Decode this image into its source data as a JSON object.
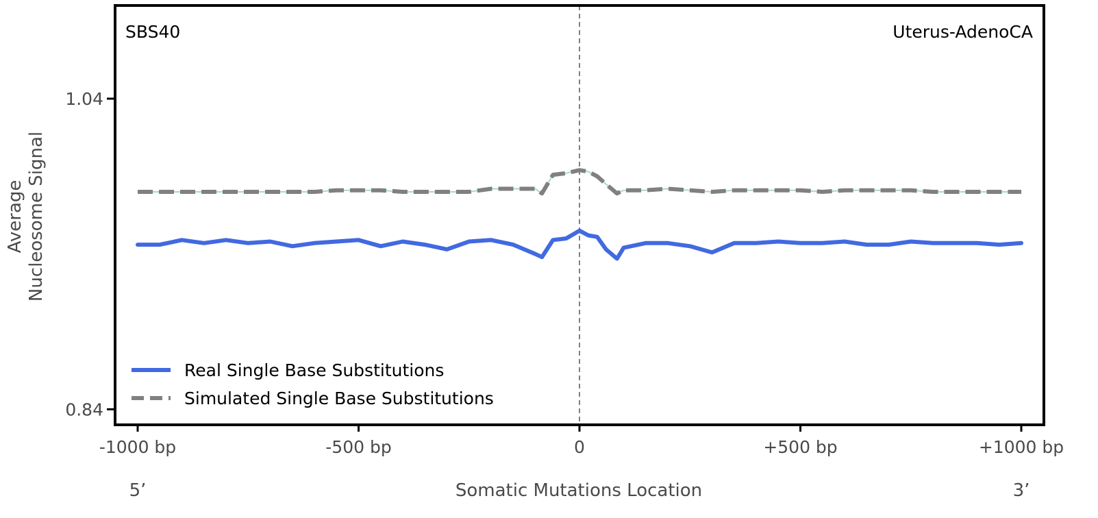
{
  "chart_data": {
    "type": "line",
    "signature_label": "SBS40",
    "cancer_type_label": "Uterus-AdenoCA",
    "ylabel_lines": [
      "Average",
      "Nucleosome Signal"
    ],
    "xlabel": "Somatic Mutations Location",
    "five_prime_label": "5’",
    "three_prime_label": "3’",
    "xlim": [
      -1000,
      1000
    ],
    "ylim": [
      0.83,
      1.1
    ],
    "x_ticks": [
      {
        "value": -1000,
        "label": "-1000 bp"
      },
      {
        "value": -500,
        "label": "-500 bp"
      },
      {
        "value": 0,
        "label": "0"
      },
      {
        "value": 500,
        "label": "+500 bp"
      },
      {
        "value": 1000,
        "label": "+1000 bp"
      }
    ],
    "y_ticks": [
      {
        "value": 0.84,
        "label": "0.84"
      },
      {
        "value": 1.04,
        "label": "1.04"
      }
    ],
    "center_line_x": 0,
    "legend_position": "bottom-left",
    "x": [
      -1000,
      -950,
      -900,
      -850,
      -800,
      -750,
      -700,
      -650,
      -600,
      -550,
      -500,
      -450,
      -400,
      -350,
      -300,
      -250,
      -200,
      -150,
      -100,
      -85,
      -60,
      -30,
      0,
      20,
      40,
      60,
      85,
      100,
      150,
      200,
      250,
      300,
      350,
      400,
      450,
      500,
      550,
      600,
      650,
      700,
      750,
      800,
      850,
      900,
      950,
      1000
    ],
    "series": [
      {
        "name": "Real Single Base Substitutions",
        "color": "#4169E1",
        "style": "solid",
        "values": [
          0.946,
          0.946,
          0.949,
          0.947,
          0.949,
          0.947,
          0.948,
          0.945,
          0.947,
          0.948,
          0.949,
          0.945,
          0.948,
          0.946,
          0.943,
          0.948,
          0.949,
          0.946,
          0.94,
          0.938,
          0.949,
          0.95,
          0.955,
          0.952,
          0.951,
          0.943,
          0.937,
          0.944,
          0.947,
          0.947,
          0.945,
          0.941,
          0.947,
          0.947,
          0.948,
          0.947,
          0.947,
          0.948,
          0.946,
          0.946,
          0.948,
          0.947,
          0.947,
          0.947,
          0.946,
          0.947
        ]
      },
      {
        "name": "Simulated Single Base Substitutions",
        "color": "#808080",
        "style": "dashed",
        "values": [
          0.98,
          0.98,
          0.98,
          0.98,
          0.98,
          0.98,
          0.98,
          0.98,
          0.98,
          0.981,
          0.981,
          0.981,
          0.98,
          0.98,
          0.98,
          0.98,
          0.982,
          0.982,
          0.982,
          0.979,
          0.991,
          0.992,
          0.994,
          0.993,
          0.99,
          0.985,
          0.979,
          0.981,
          0.981,
          0.982,
          0.981,
          0.98,
          0.981,
          0.981,
          0.981,
          0.981,
          0.98,
          0.981,
          0.981,
          0.981,
          0.981,
          0.98,
          0.98,
          0.98,
          0.98,
          0.98
        ]
      }
    ]
  }
}
